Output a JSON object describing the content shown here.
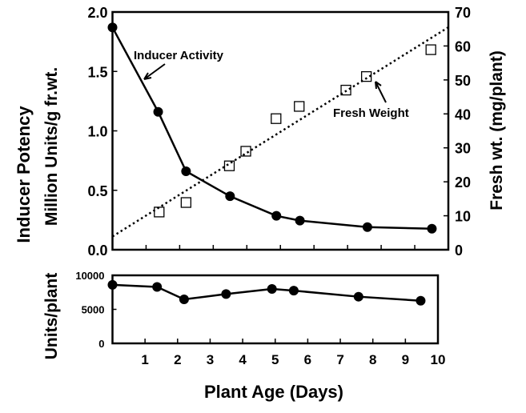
{
  "chart_data": [
    {
      "type": "line",
      "panel": "top",
      "xlabel": "Plant Age (Days)",
      "xlim": [
        0,
        10
      ],
      "x_ticks": [
        1,
        2,
        3,
        4,
        5,
        6,
        7,
        8,
        9,
        10
      ],
      "ylabel_outer": "Inducer Potency",
      "ylabel": "Million Units/g fr.wt.",
      "ylim": [
        0,
        2.0
      ],
      "y_ticks": [
        "0.0",
        "0.5",
        "1.0",
        "1.5",
        "2.0"
      ],
      "y2label": "Fresh wt. (mg/plant)",
      "y2lim": [
        0,
        70
      ],
      "y2_ticks": [
        "0",
        "10",
        "20",
        "30",
        "40",
        "50",
        "60",
        "70"
      ],
      "grid": false,
      "series": [
        {
          "name": "Inducer Activity",
          "axis": "left",
          "marker": "filled-circle",
          "style": "solid",
          "x": [
            0,
            1.36,
            2.19,
            3.5,
            4.88,
            5.58,
            7.59,
            9.51
          ],
          "y": [
            1.87,
            1.16,
            0.66,
            0.45,
            0.285,
            0.245,
            0.19,
            0.177
          ]
        },
        {
          "name": "Fresh Weight",
          "axis": "right",
          "marker": "open-square",
          "style": "none",
          "x": [
            1.39,
            2.19,
            3.48,
            3.97,
            4.87,
            5.56,
            6.95,
            7.56,
            9.48
          ],
          "y": [
            11.1,
            13.9,
            24.7,
            29.0,
            38.6,
            42.2,
            47.0,
            51.0,
            58.9
          ],
          "fit_line": {
            "style": "dotted",
            "x": [
              0,
              10
            ],
            "y": [
              3.9,
              65.5
            ]
          }
        }
      ],
      "annotations": [
        "Inducer Activity",
        "Fresh Weight"
      ]
    },
    {
      "type": "line",
      "panel": "bottom",
      "ylabel": "Units/plant",
      "ylim": [
        0,
        10000
      ],
      "y_ticks": [
        "0",
        "5000",
        "10000"
      ],
      "xlim": [
        0,
        10
      ],
      "x_ticks": [
        "1",
        "2",
        "3",
        "4",
        "5",
        "6",
        "7",
        "8",
        "9",
        "10"
      ],
      "xlabel": "Plant Age (Days)",
      "series": [
        {
          "marker": "filled-circle",
          "style": "solid",
          "x": [
            0,
            1.37,
            2.2,
            3.49,
            4.9,
            5.57,
            7.56,
            9.47
          ],
          "y": [
            8600,
            8300,
            6470,
            7250,
            8000,
            7750,
            6860,
            6270
          ]
        }
      ]
    }
  ]
}
